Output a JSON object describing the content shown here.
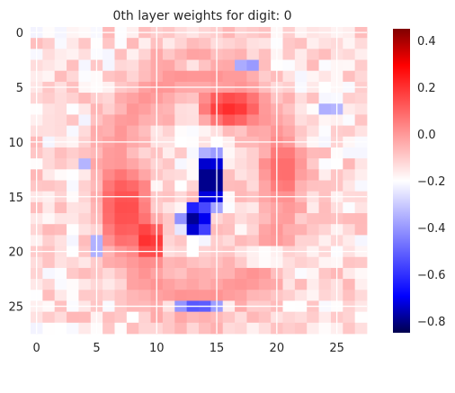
{
  "chart_data": {
    "type": "heatmap",
    "title": "0th layer weights for digit: 0",
    "rows": 28,
    "cols": 28,
    "xticks": [
      0,
      5,
      10,
      15,
      20,
      25
    ],
    "yticks": [
      0,
      5,
      10,
      15,
      20,
      25
    ],
    "colormap": "seismic",
    "colorbar": {
      "vmin": -0.85,
      "vmax": 0.45,
      "ticks": [
        0.4,
        0.2,
        0.0,
        -0.2,
        -0.4,
        -0.6,
        -0.8
      ],
      "tick_labels": [
        "0.4",
        "0.2",
        "0.0",
        "−0.2",
        "−0.4",
        "−0.6",
        "−0.8"
      ]
    },
    "grid": true,
    "background_value": 0.05,
    "regions": [
      {
        "shape": "ring",
        "cx": 13.5,
        "cy": 14,
        "rx": 7.2,
        "ry": 10.2,
        "width": 3.2,
        "value": 0.18
      },
      {
        "shape": "blob",
        "cx": 7.5,
        "cy": 16,
        "rx": 2.5,
        "ry": 4.5,
        "value": 0.3
      },
      {
        "shape": "blob",
        "cx": 9.5,
        "cy": 19,
        "rx": 1.2,
        "ry": 2.5,
        "value": 0.38
      },
      {
        "shape": "blob",
        "cx": 16,
        "cy": 7,
        "rx": 3,
        "ry": 2,
        "value": 0.35
      },
      {
        "shape": "blob",
        "cx": 20.5,
        "cy": 12.5,
        "rx": 2,
        "ry": 3,
        "value": 0.25
      },
      {
        "shape": "blob",
        "cx": 14.5,
        "cy": 13.5,
        "rx": 1.4,
        "ry": 3.2,
        "value": -0.82
      },
      {
        "shape": "blob",
        "cx": 13.2,
        "cy": 17.2,
        "rx": 1.4,
        "ry": 1.8,
        "value": -0.7
      },
      {
        "shape": "blob",
        "cx": 13.5,
        "cy": 24.6,
        "rx": 4.2,
        "ry": 0.55,
        "value": -0.78
      },
      {
        "shape": "blob",
        "cx": 24.5,
        "cy": 7.2,
        "rx": 0.6,
        "ry": 0.7,
        "value": -0.6
      },
      {
        "shape": "blob",
        "cx": 17.5,
        "cy": 3.3,
        "rx": 1.5,
        "ry": 0.5,
        "value": -0.4
      },
      {
        "shape": "blob",
        "cx": 13,
        "cy": 3.4,
        "rx": 2.5,
        "ry": 0.5,
        "value": -0.15
      },
      {
        "shape": "blob",
        "cx": 5,
        "cy": 19.5,
        "rx": 0.5,
        "ry": 0.8,
        "value": -0.3
      },
      {
        "shape": "blob",
        "cx": 4.3,
        "cy": 12,
        "rx": 0.5,
        "ry": 1,
        "value": -0.25
      },
      {
        "shape": "blob",
        "cx": 19,
        "cy": 20.5,
        "rx": 3,
        "ry": 1,
        "value": -0.05
      }
    ]
  }
}
